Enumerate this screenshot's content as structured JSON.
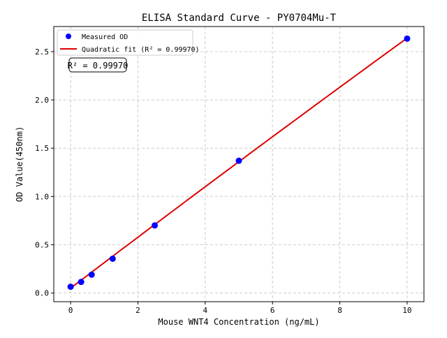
{
  "chart_data": {
    "type": "scatter",
    "title": "ELISA Standard Curve - PY0704Mu-T",
    "xlabel": "Mouse WNT4 Concentration (ng/mL)",
    "ylabel": "OD Value(450nm)",
    "xlim": [
      -0.5,
      10.5
    ],
    "ylim": [
      -0.09,
      2.76
    ],
    "xticks": [
      0,
      2,
      4,
      6,
      8,
      10
    ],
    "xtick_labels": [
      "0",
      "2",
      "4",
      "6",
      "8",
      "10"
    ],
    "yticks": [
      0,
      0.5,
      1.0,
      1.5,
      2.0,
      2.5
    ],
    "ytick_labels": [
      "0.0",
      "0.5",
      "1.0",
      "1.5",
      "2.0",
      "2.5"
    ],
    "grid": true,
    "legend_placement": "top-left",
    "series": [
      {
        "name": "Measured OD",
        "kind": "scatter",
        "color": "#0000ff",
        "x": [
          0,
          0.3125,
          0.625,
          1.25,
          2.5,
          5,
          10
        ],
        "y": [
          0.065,
          0.115,
          0.19,
          0.355,
          0.7,
          1.37,
          2.635
        ]
      },
      {
        "name": "Quadratic fit (R² = 0.99970)",
        "kind": "line",
        "color": "#dd0000",
        "coefficients": {
          "a": 0.05,
          "b": 0.265,
          "c": -0.0006
        },
        "x_range": [
          0,
          10
        ]
      }
    ],
    "annotation": "R² = 0.99970"
  }
}
